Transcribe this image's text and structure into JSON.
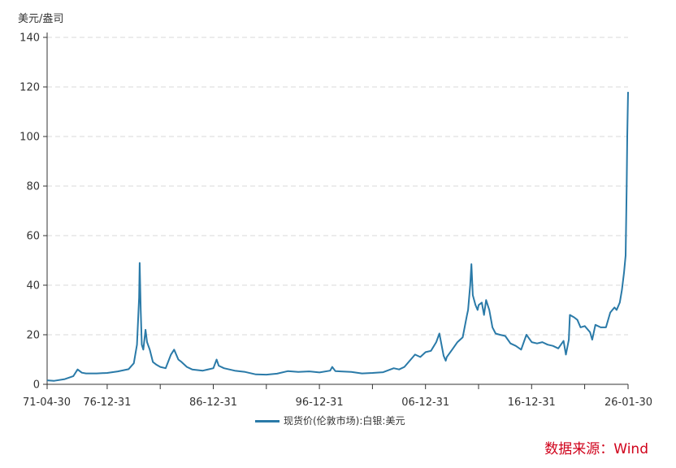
{
  "chart_data": {
    "type": "line",
    "unit_label": "美元/盎司",
    "x_tick_labels": [
      "71-04-30",
      "76-12-31",
      "86-12-31",
      "96-12-31",
      "06-12-31",
      "16-12-31",
      "26-01-30"
    ],
    "ylim": [
      0,
      140
    ],
    "y_ticks": [
      0,
      20,
      40,
      60,
      80,
      100,
      120,
      140
    ],
    "grid": "horizontal-dashed",
    "legend_position": "bottom-center",
    "series": [
      {
        "name": "现货价(伦敦市场):白银:美元",
        "color": "#2a7aa8",
        "x": [
          1971.33,
          1972.0,
          1973.0,
          1973.8,
          1974.2,
          1974.6,
          1975.0,
          1976.0,
          1977.0,
          1978.0,
          1979.0,
          1979.5,
          1979.8,
          1980.0,
          1980.05,
          1980.15,
          1980.25,
          1980.4,
          1980.6,
          1980.75,
          1981.0,
          1981.3,
          1981.6,
          1982.0,
          1982.5,
          1983.0,
          1983.3,
          1983.7,
          1984.0,
          1984.5,
          1985.0,
          1986.0,
          1987.0,
          1987.3,
          1987.5,
          1988.0,
          1989.0,
          1990.0,
          1991.0,
          1992.0,
          1993.0,
          1994.0,
          1995.0,
          1996.0,
          1997.0,
          1998.0,
          1998.2,
          1998.5,
          1999.0,
          2000.0,
          2001.0,
          2002.0,
          2003.0,
          2004.0,
          2004.5,
          2005.0,
          2006.0,
          2006.5,
          2007.0,
          2007.5,
          2008.0,
          2008.3,
          2008.7,
          2008.9,
          2009.0,
          2009.5,
          2010.0,
          2010.5,
          2010.9,
          2011.0,
          2011.2,
          2011.32,
          2011.45,
          2011.7,
          2011.9,
          2012.0,
          2012.3,
          2012.5,
          2012.7,
          2013.0,
          2013.3,
          2013.6,
          2014.0,
          2014.5,
          2015.0,
          2015.5,
          2016.0,
          2016.5,
          2017.0,
          2017.5,
          2018.0,
          2018.5,
          2019.0,
          2019.5,
          2020.0,
          2020.22,
          2020.5,
          2020.6,
          2021.0,
          2021.3,
          2021.6,
          2022.0,
          2022.5,
          2022.7,
          2023.0,
          2023.5,
          2024.0,
          2024.4,
          2024.8,
          2025.0,
          2025.3,
          2025.5,
          2025.7,
          2025.85,
          2025.95,
          2026.0,
          2026.08
        ],
        "values": [
          1.6,
          1.4,
          2.1,
          3.3,
          6.0,
          4.7,
          4.4,
          4.4,
          4.6,
          5.2,
          6.1,
          8.5,
          16.0,
          35.0,
          49.0,
          30.0,
          16.0,
          14.0,
          22.0,
          17.0,
          14.0,
          9.0,
          8.0,
          7.0,
          6.5,
          12.0,
          14.0,
          10.0,
          9.0,
          7.0,
          6.0,
          5.5,
          6.5,
          10.0,
          7.5,
          6.5,
          5.5,
          5.0,
          4.0,
          3.9,
          4.3,
          5.3,
          5.0,
          5.2,
          4.8,
          5.5,
          7.0,
          5.3,
          5.2,
          5.0,
          4.4,
          4.6,
          4.9,
          6.5,
          6.0,
          7.0,
          12.0,
          11.0,
          13.0,
          13.5,
          17.0,
          20.5,
          11.5,
          9.5,
          11.0,
          14.0,
          17.0,
          19.0,
          28.0,
          30.0,
          40.0,
          48.5,
          36.0,
          32.0,
          30.0,
          32.0,
          33.0,
          28.0,
          34.0,
          30.0,
          23.0,
          20.5,
          20.0,
          19.5,
          16.5,
          15.5,
          14.0,
          20.0,
          17.0,
          16.5,
          17.0,
          16.0,
          15.5,
          14.5,
          17.5,
          12.0,
          18.0,
          28.0,
          27.0,
          26.0,
          23.0,
          23.5,
          21.0,
          18.0,
          24.0,
          23.0,
          23.0,
          29.0,
          31.0,
          30.0,
          33.0,
          38.0,
          45.0,
          52.0,
          80.0,
          100.0,
          118.0
        ]
      }
    ],
    "source": "数据来源：Wind"
  }
}
